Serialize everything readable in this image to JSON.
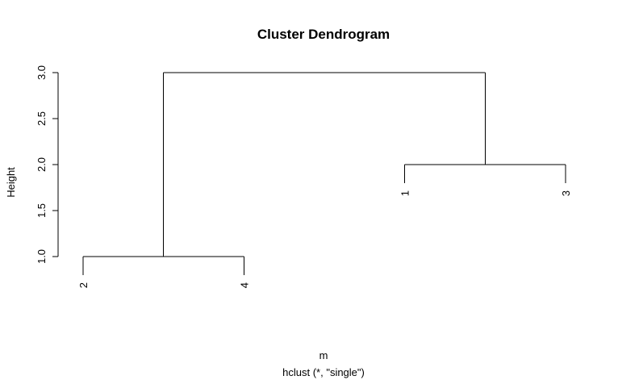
{
  "chart_data": {
    "type": "dendrogram",
    "title": "Cluster Dendrogram",
    "ylabel": "Height",
    "xlabel": "m",
    "sub": "hclust (*, \"single\")",
    "ylim": [
      1.0,
      3.0
    ],
    "y_ticks": [
      "1.0",
      "1.5",
      "2.0",
      "2.5",
      "3.0"
    ],
    "leaf_order": [
      "2",
      "4",
      "1",
      "3"
    ],
    "merges": [
      {
        "left": "2",
        "right": "4",
        "height": 1.0
      },
      {
        "left": "1",
        "right": "3",
        "height": 2.0
      },
      {
        "left": "2,4",
        "right": "1,3",
        "height": 3.0
      }
    ],
    "line_color": "#000000"
  }
}
